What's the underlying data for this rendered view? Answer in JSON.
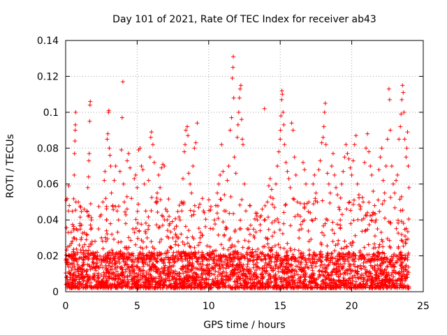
{
  "chart_data": {
    "type": "scatter",
    "title": "Day 101 of 2021, Rate Of TEC Index for receiver ab43",
    "xlabel": "GPS time / hours",
    "ylabel": "ROTI / TECUs",
    "xlim": [
      0,
      25
    ],
    "ylim": [
      0,
      0.14
    ],
    "xticks": [
      0,
      5,
      10,
      15,
      20,
      25
    ],
    "yticks": [
      0,
      0.02,
      0.04,
      0.06,
      0.08,
      0.1,
      0.12,
      0.14
    ],
    "ytick_labels": [
      "0",
      "0.02",
      "0.04",
      "0.06",
      "0.08",
      "0.1",
      "0.12",
      "0.14"
    ],
    "grid": true,
    "marker": "plus",
    "series": [
      {
        "color": "#ff0000",
        "points": [
          [
            0.1,
            0.004
          ],
          [
            0.12,
            0.015
          ],
          [
            0.15,
            0.025
          ],
          [
            0.18,
            0.033
          ],
          [
            0.2,
            0.045
          ],
          [
            0.22,
            0.059
          ],
          [
            0.25,
            0.048
          ],
          [
            0.28,
            0.02
          ],
          [
            0.3,
            0.01
          ],
          [
            0.35,
            0.008
          ],
          [
            0.4,
            0.012
          ],
          [
            0.45,
            0.006
          ],
          [
            0.5,
            0.018
          ],
          [
            0.55,
            0.03
          ],
          [
            0.6,
            0.065
          ],
          [
            0.62,
            0.077
          ],
          [
            0.65,
            0.084
          ],
          [
            0.67,
            0.09
          ],
          [
            0.68,
            0.093
          ],
          [
            0.7,
            0.1
          ],
          [
            0.72,
            0.05
          ],
          [
            0.75,
            0.035
          ],
          [
            0.8,
            0.021
          ],
          [
            0.85,
            0.015
          ],
          [
            0.9,
            0.01
          ],
          [
            0.95,
            0.026
          ],
          [
            1.0,
            0.038
          ],
          [
            1.05,
            0.047
          ],
          [
            1.1,
            0.03
          ],
          [
            1.15,
            0.014
          ],
          [
            1.2,
            0.008
          ],
          [
            1.3,
            0.012
          ],
          [
            1.4,
            0.02
          ],
          [
            1.45,
            0.032
          ],
          [
            1.5,
            0.045
          ],
          [
            1.55,
            0.058
          ],
          [
            1.6,
            0.064
          ],
          [
            1.62,
            0.073
          ],
          [
            1.65,
            0.077
          ],
          [
            1.68,
            0.095
          ],
          [
            1.7,
            0.104
          ],
          [
            1.72,
            0.106
          ],
          [
            1.75,
            0.049
          ],
          [
            1.8,
            0.04
          ],
          [
            1.85,
            0.028
          ],
          [
            1.9,
            0.018
          ],
          [
            2.0,
            0.01
          ],
          [
            2.1,
            0.014
          ],
          [
            2.2,
            0.022
          ],
          [
            2.3,
            0.035
          ],
          [
            2.4,
            0.042
          ],
          [
            2.5,
            0.03
          ],
          [
            2.6,
            0.05
          ],
          [
            2.7,
            0.062
          ],
          [
            2.75,
            0.067
          ],
          [
            2.8,
            0.052
          ],
          [
            2.85,
            0.04
          ],
          [
            2.9,
            0.085
          ],
          [
            2.95,
            0.088
          ],
          [
            3.0,
            0.1
          ],
          [
            3.02,
            0.101
          ],
          [
            3.05,
            0.08
          ],
          [
            3.1,
            0.076
          ],
          [
            3.15,
            0.07
          ],
          [
            3.2,
            0.055
          ],
          [
            3.3,
            0.048
          ],
          [
            3.4,
            0.062
          ],
          [
            3.5,
            0.07
          ],
          [
            3.6,
            0.045
          ],
          [
            3.7,
            0.04
          ],
          [
            3.8,
            0.067
          ],
          [
            3.9,
            0.079
          ],
          [
            3.95,
            0.097
          ],
          [
            4.0,
            0.117
          ],
          [
            4.05,
            0.06
          ],
          [
            4.1,
            0.05
          ],
          [
            4.2,
            0.038
          ],
          [
            4.3,
            0.073
          ],
          [
            4.4,
            0.077
          ],
          [
            4.5,
            0.069
          ],
          [
            4.6,
            0.052
          ],
          [
            4.7,
            0.035
          ],
          [
            4.8,
            0.063
          ],
          [
            4.9,
            0.065
          ],
          [
            5.0,
            0.058
          ],
          [
            5.1,
            0.079
          ],
          [
            5.2,
            0.08
          ],
          [
            5.3,
            0.07
          ],
          [
            5.4,
            0.068
          ],
          [
            5.5,
            0.06
          ],
          [
            5.6,
            0.045
          ],
          [
            5.7,
            0.03
          ],
          [
            5.8,
            0.062
          ],
          [
            5.9,
            0.075
          ],
          [
            5.95,
            0.086
          ],
          [
            6.0,
            0.089
          ],
          [
            6.1,
            0.082
          ],
          [
            6.2,
            0.072
          ],
          [
            6.3,
            0.05
          ],
          [
            6.4,
            0.055
          ],
          [
            6.5,
            0.065
          ],
          [
            6.6,
            0.058
          ],
          [
            6.7,
            0.069
          ],
          [
            6.8,
            0.071
          ],
          [
            6.9,
            0.07
          ],
          [
            7.0,
            0.046
          ],
          [
            7.1,
            0.04
          ],
          [
            7.2,
            0.03
          ],
          [
            7.3,
            0.025
          ],
          [
            7.5,
            0.03
          ],
          [
            7.6,
            0.035
          ],
          [
            7.7,
            0.028
          ],
          [
            7.8,
            0.02
          ],
          [
            7.9,
            0.03
          ],
          [
            8.0,
            0.04
          ],
          [
            8.1,
            0.05
          ],
          [
            8.2,
            0.063
          ],
          [
            8.3,
            0.078
          ],
          [
            8.35,
            0.082
          ],
          [
            8.4,
            0.09
          ],
          [
            8.5,
            0.092
          ],
          [
            8.55,
            0.087
          ],
          [
            8.6,
            0.066
          ],
          [
            8.7,
            0.06
          ],
          [
            8.8,
            0.055
          ],
          [
            8.9,
            0.07
          ],
          [
            9.0,
            0.08
          ],
          [
            9.1,
            0.083
          ],
          [
            9.2,
            0.094
          ],
          [
            9.3,
            0.047
          ],
          [
            9.4,
            0.03
          ],
          [
            9.5,
            0.02
          ],
          [
            9.6,
            0.015
          ],
          [
            9.8,
            0.012
          ],
          [
            10.0,
            0.02
          ],
          [
            10.1,
            0.025
          ],
          [
            10.3,
            0.035
          ],
          [
            10.4,
            0.04
          ],
          [
            10.5,
            0.048
          ],
          [
            10.6,
            0.055
          ],
          [
            10.7,
            0.06
          ],
          [
            10.8,
            0.065
          ],
          [
            10.9,
            0.082
          ],
          [
            11.0,
            0.067
          ],
          [
            11.1,
            0.054
          ],
          [
            11.2,
            0.045
          ],
          [
            11.3,
            0.062
          ],
          [
            11.4,
            0.07
          ],
          [
            11.5,
            0.09
          ],
          [
            11.6,
            0.097
          ],
          [
            11.65,
            0.119
          ],
          [
            11.7,
            0.125
          ],
          [
            11.72,
            0.131
          ],
          [
            11.75,
            0.108
          ],
          [
            11.8,
            0.075
          ],
          [
            11.9,
            0.066
          ],
          [
            12.0,
            0.086
          ],
          [
            12.05,
            0.093
          ],
          [
            12.1,
            0.1
          ],
          [
            12.15,
            0.108
          ],
          [
            12.2,
            0.113
          ],
          [
            12.25,
            0.115
          ],
          [
            12.3,
            0.096
          ],
          [
            12.35,
            0.085
          ],
          [
            12.4,
            0.082
          ],
          [
            12.5,
            0.06
          ],
          [
            12.6,
            0.045
          ],
          [
            12.7,
            0.035
          ],
          [
            12.8,
            0.028
          ],
          [
            12.9,
            0.022
          ],
          [
            13.0,
            0.02
          ],
          [
            13.2,
            0.03
          ],
          [
            13.4,
            0.04
          ],
          [
            13.6,
            0.034
          ],
          [
            13.8,
            0.025
          ],
          [
            13.9,
            0.102
          ],
          [
            14.0,
            0.03
          ],
          [
            14.1,
            0.05
          ],
          [
            14.2,
            0.059
          ],
          [
            14.3,
            0.063
          ],
          [
            14.4,
            0.057
          ],
          [
            14.5,
            0.052
          ],
          [
            14.6,
            0.047
          ],
          [
            14.7,
            0.06
          ],
          [
            14.8,
            0.07
          ],
          [
            14.9,
            0.078
          ],
          [
            15.0,
            0.085
          ],
          [
            15.02,
            0.09
          ],
          [
            15.05,
            0.098
          ],
          [
            15.1,
            0.107
          ],
          [
            15.12,
            0.112
          ],
          [
            15.15,
            0.11
          ],
          [
            15.2,
            0.1
          ],
          [
            15.25,
            0.093
          ],
          [
            15.3,
            0.082
          ],
          [
            15.4,
            0.072
          ],
          [
            15.5,
            0.067
          ],
          [
            15.6,
            0.063
          ],
          [
            15.7,
            0.058
          ],
          [
            15.8,
            0.094
          ],
          [
            15.9,
            0.09
          ],
          [
            16.0,
            0.075
          ],
          [
            16.1,
            0.065
          ],
          [
            16.2,
            0.05
          ],
          [
            16.4,
            0.042
          ],
          [
            16.5,
            0.035
          ],
          [
            16.6,
            0.072
          ],
          [
            16.7,
            0.068
          ],
          [
            16.8,
            0.06
          ],
          [
            17.0,
            0.05
          ],
          [
            17.1,
            0.044
          ],
          [
            17.2,
            0.04
          ],
          [
            17.3,
            0.06
          ],
          [
            17.4,
            0.065
          ],
          [
            17.5,
            0.055
          ],
          [
            17.6,
            0.05
          ],
          [
            17.7,
            0.068
          ],
          [
            17.8,
            0.073
          ],
          [
            17.9,
            0.083
          ],
          [
            18.0,
            0.086
          ],
          [
            18.05,
            0.092
          ],
          [
            18.1,
            0.1
          ],
          [
            18.15,
            0.105
          ],
          [
            18.2,
            0.082
          ],
          [
            18.3,
            0.066
          ],
          [
            18.4,
            0.06
          ],
          [
            18.5,
            0.055
          ],
          [
            18.6,
            0.07
          ],
          [
            18.7,
            0.077
          ],
          [
            18.8,
            0.065
          ],
          [
            18.9,
            0.058
          ],
          [
            19.0,
            0.054
          ],
          [
            19.1,
            0.047
          ],
          [
            19.2,
            0.04
          ],
          [
            19.3,
            0.06
          ],
          [
            19.4,
            0.067
          ],
          [
            19.5,
            0.075
          ],
          [
            19.6,
            0.082
          ],
          [
            19.7,
            0.077
          ],
          [
            19.8,
            0.074
          ],
          [
            19.9,
            0.069
          ],
          [
            20.0,
            0.065
          ],
          [
            20.1,
            0.073
          ],
          [
            20.2,
            0.082
          ],
          [
            20.3,
            0.087
          ],
          [
            20.4,
            0.06
          ],
          [
            20.5,
            0.054
          ],
          [
            20.6,
            0.046
          ],
          [
            20.7,
            0.04
          ],
          [
            20.8,
            0.05
          ],
          [
            20.9,
            0.072
          ],
          [
            21.0,
            0.08
          ],
          [
            21.1,
            0.088
          ],
          [
            21.2,
            0.078
          ],
          [
            21.3,
            0.07
          ],
          [
            21.4,
            0.065
          ],
          [
            21.5,
            0.056
          ],
          [
            21.6,
            0.048
          ],
          [
            21.7,
            0.04
          ],
          [
            21.8,
            0.035
          ],
          [
            21.9,
            0.068
          ],
          [
            22.0,
            0.075
          ],
          [
            22.1,
            0.08
          ],
          [
            22.2,
            0.062
          ],
          [
            22.3,
            0.055
          ],
          [
            22.4,
            0.07
          ],
          [
            22.5,
            0.085
          ],
          [
            22.6,
            0.113
          ],
          [
            22.65,
            0.107
          ],
          [
            22.7,
            0.09
          ],
          [
            22.8,
            0.07
          ],
          [
            22.9,
            0.06
          ],
          [
            23.0,
            0.055
          ],
          [
            23.1,
            0.062
          ],
          [
            23.2,
            0.065
          ],
          [
            23.3,
            0.085
          ],
          [
            23.4,
            0.092
          ],
          [
            23.45,
            0.099
          ],
          [
            23.5,
            0.107
          ],
          [
            23.55,
            0.115
          ],
          [
            23.6,
            0.111
          ],
          [
            23.65,
            0.1
          ],
          [
            23.7,
            0.085
          ],
          [
            23.8,
            0.075
          ],
          [
            23.85,
            0.08
          ],
          [
            23.9,
            0.089
          ],
          [
            23.95,
            0.07
          ],
          [
            24.0,
            0.058
          ]
        ]
      }
    ]
  }
}
